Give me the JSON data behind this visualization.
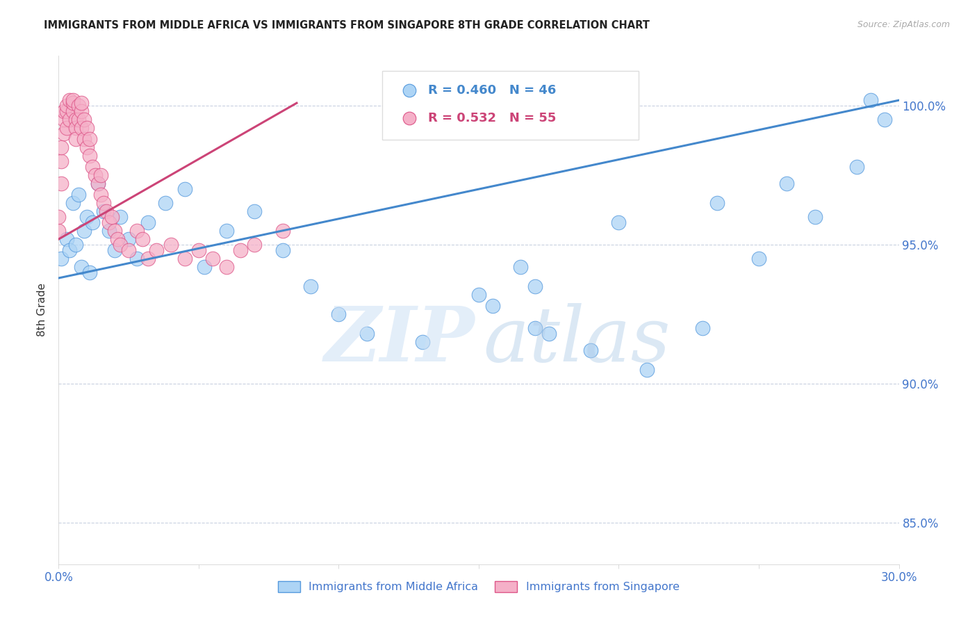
{
  "title": "IMMIGRANTS FROM MIDDLE AFRICA VS IMMIGRANTS FROM SINGAPORE 8TH GRADE CORRELATION CHART",
  "source": "Source: ZipAtlas.com",
  "ylabel": "8th Grade",
  "y_ticks": [
    85.0,
    90.0,
    95.0,
    100.0
  ],
  "y_tick_labels": [
    "85.0%",
    "90.0%",
    "95.0%",
    "100.0%"
  ],
  "x_min": 0.0,
  "x_max": 0.3,
  "y_min": 83.5,
  "y_max": 101.8,
  "series1_label": "Immigrants from Middle Africa",
  "series1_color": "#add4f5",
  "series1_edge_color": "#5599dd",
  "series1_line_color": "#4488cc",
  "series1_R": 0.46,
  "series1_N": 46,
  "series2_label": "Immigrants from Singapore",
  "series2_color": "#f5b0c8",
  "series2_edge_color": "#dd5588",
  "series2_line_color": "#cc4477",
  "series2_R": 0.532,
  "series2_N": 55,
  "blue_line_x": [
    0.0,
    0.3
  ],
  "blue_line_y": [
    93.8,
    100.2
  ],
  "pink_line_x": [
    0.0,
    0.085
  ],
  "pink_line_y": [
    95.2,
    100.1
  ],
  "s1_x": [
    0.001,
    0.003,
    0.004,
    0.005,
    0.006,
    0.007,
    0.008,
    0.009,
    0.01,
    0.011,
    0.012,
    0.014,
    0.016,
    0.018,
    0.02,
    0.022,
    0.025,
    0.028,
    0.032,
    0.038,
    0.045,
    0.052,
    0.06,
    0.07,
    0.08,
    0.09,
    0.1,
    0.11,
    0.13,
    0.15,
    0.17,
    0.19,
    0.21,
    0.23,
    0.25,
    0.27,
    0.29,
    0.17,
    0.2,
    0.165,
    0.235,
    0.26,
    0.175,
    0.155,
    0.295,
    0.285
  ],
  "s1_y": [
    94.5,
    95.2,
    94.8,
    96.5,
    95.0,
    96.8,
    94.2,
    95.5,
    96.0,
    94.0,
    95.8,
    97.2,
    96.2,
    95.5,
    94.8,
    96.0,
    95.2,
    94.5,
    95.8,
    96.5,
    97.0,
    94.2,
    95.5,
    96.2,
    94.8,
    93.5,
    92.5,
    91.8,
    91.5,
    93.2,
    92.0,
    91.2,
    90.5,
    92.0,
    94.5,
    96.0,
    100.2,
    93.5,
    95.8,
    94.2,
    96.5,
    97.2,
    91.8,
    92.8,
    99.5,
    97.8
  ],
  "s2_x": [
    0.0,
    0.0,
    0.001,
    0.001,
    0.001,
    0.002,
    0.002,
    0.002,
    0.003,
    0.003,
    0.003,
    0.004,
    0.004,
    0.005,
    0.005,
    0.005,
    0.006,
    0.006,
    0.006,
    0.007,
    0.007,
    0.008,
    0.008,
    0.008,
    0.009,
    0.009,
    0.01,
    0.01,
    0.011,
    0.011,
    0.012,
    0.013,
    0.014,
    0.015,
    0.015,
    0.016,
    0.017,
    0.018,
    0.019,
    0.02,
    0.021,
    0.022,
    0.025,
    0.028,
    0.03,
    0.032,
    0.035,
    0.04,
    0.045,
    0.05,
    0.055,
    0.06,
    0.065,
    0.07,
    0.08
  ],
  "s2_y": [
    95.5,
    96.0,
    97.2,
    98.0,
    98.5,
    99.0,
    99.5,
    99.8,
    99.2,
    99.8,
    100.0,
    100.2,
    99.5,
    99.8,
    100.1,
    100.2,
    99.5,
    99.2,
    98.8,
    99.5,
    100.0,
    99.8,
    100.1,
    99.2,
    99.5,
    98.8,
    98.5,
    99.2,
    98.2,
    98.8,
    97.8,
    97.5,
    97.2,
    96.8,
    97.5,
    96.5,
    96.2,
    95.8,
    96.0,
    95.5,
    95.2,
    95.0,
    94.8,
    95.5,
    95.2,
    94.5,
    94.8,
    95.0,
    94.5,
    94.8,
    94.5,
    94.2,
    94.8,
    95.0,
    95.5
  ]
}
